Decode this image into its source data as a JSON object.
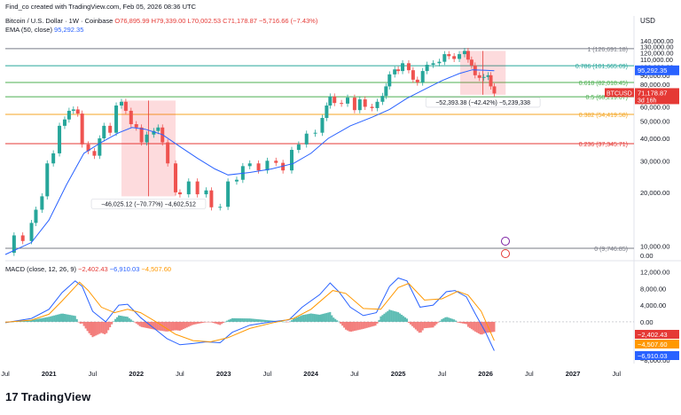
{
  "header": {
    "credit": "Find_co created with TradingView.com, Feb 05, 2026 08:36 UTC",
    "symbol_title": "Bitcoin / U.S. Dollar · 1W · Coinbase",
    "ohlc": "O76,895.99 H79,339.00 L70,002.53 C71,178.87 −5,716.66 (−7.43%)",
    "ema_label": "EMA (50, close)",
    "ema_value": "95,292.35",
    "macd_label": "MACD (close, 12, 26, 9)",
    "macd_values": [
      "−2,402.43",
      "−6,910.03",
      "−4,507.60"
    ],
    "currency": "USD"
  },
  "logo": {
    "text": "TradingView"
  },
  "chart_data": [
    {
      "type": "candlestick",
      "name": "price",
      "y_scale": "log",
      "ylim": [
        8500,
        150000
      ],
      "y_ticks": [
        10000,
        20000,
        30000,
        40000,
        50000,
        60000,
        70000,
        80000,
        90000,
        100000,
        110000,
        120000,
        130000,
        140000
      ],
      "y_tick_labels": [
        "10,000.00",
        "20,000.00",
        "30,000.00",
        "40,000.00",
        "50,000.00",
        "60,000.00",
        "70,000.00",
        "80,000.00",
        "90,000.00",
        "100,000.00",
        "110,000.00",
        "120,000.00",
        "130,000.00",
        "140,000.00"
      ],
      "y_bottom_label": "0.00",
      "x_ticks": [
        "Jul",
        "2021",
        "Jul",
        "2022",
        "Jul",
        "2023",
        "Jul",
        "2024",
        "Jul",
        "2025",
        "Jul",
        "2026",
        "Jul",
        "2027",
        "Jul"
      ],
      "x_tick_dates": [
        2020.5,
        2021.0,
        2021.5,
        2022.0,
        2022.5,
        2023.0,
        2023.5,
        2024.0,
        2024.5,
        2025.0,
        2025.5,
        2026.0,
        2026.5,
        2027.0,
        2027.5
      ],
      "xlim": [
        2020.5,
        2027.7
      ],
      "close_series": [
        [
          2020.5,
          9200
        ],
        [
          2020.6,
          11500
        ],
        [
          2020.7,
          10700
        ],
        [
          2020.8,
          13500
        ],
        [
          2020.85,
          16000
        ],
        [
          2020.92,
          19000
        ],
        [
          2020.98,
          29000
        ],
        [
          2021.05,
          33000
        ],
        [
          2021.12,
          47000
        ],
        [
          2021.18,
          51000
        ],
        [
          2021.23,
          57000
        ],
        [
          2021.28,
          58000
        ],
        [
          2021.33,
          55000
        ],
        [
          2021.38,
          37000
        ],
        [
          2021.45,
          34000
        ],
        [
          2021.52,
          32000
        ],
        [
          2021.58,
          40000
        ],
        [
          2021.63,
          47000
        ],
        [
          2021.7,
          43000
        ],
        [
          2021.77,
          61000
        ],
        [
          2021.83,
          64000
        ],
        [
          2021.88,
          57000
        ],
        [
          2021.94,
          48000
        ],
        [
          2022.0,
          46000
        ],
        [
          2022.06,
          38000
        ],
        [
          2022.12,
          42000
        ],
        [
          2022.2,
          44000
        ],
        [
          2022.25,
          46000
        ],
        [
          2022.3,
          38000
        ],
        [
          2022.36,
          29000
        ],
        [
          2022.45,
          20000
        ],
        [
          2022.5,
          19500
        ],
        [
          2022.6,
          23000
        ],
        [
          2022.7,
          19500
        ],
        [
          2022.8,
          20500
        ],
        [
          2022.86,
          16500
        ],
        [
          2022.96,
          16600
        ],
        [
          2023.05,
          23000
        ],
        [
          2023.15,
          23500
        ],
        [
          2023.22,
          28000
        ],
        [
          2023.3,
          29000
        ],
        [
          2023.4,
          26500
        ],
        [
          2023.5,
          30000
        ],
        [
          2023.6,
          29200
        ],
        [
          2023.68,
          26500
        ],
        [
          2023.78,
          34500
        ],
        [
          2023.86,
          37000
        ],
        [
          2023.95,
          42500
        ],
        [
          2024.05,
          43000
        ],
        [
          2024.13,
          52000
        ],
        [
          2024.18,
          61000
        ],
        [
          2024.22,
          68500
        ],
        [
          2024.27,
          63000
        ],
        [
          2024.35,
          62500
        ],
        [
          2024.42,
          67500
        ],
        [
          2024.5,
          57500
        ],
        [
          2024.56,
          66000
        ],
        [
          2024.62,
          60000
        ],
        [
          2024.7,
          59000
        ],
        [
          2024.76,
          64000
        ],
        [
          2024.82,
          69000
        ],
        [
          2024.86,
          78000
        ],
        [
          2024.9,
          91000
        ],
        [
          2024.96,
          97000
        ],
        [
          2025.0,
          95000
        ],
        [
          2025.05,
          105000
        ],
        [
          2025.12,
          96000
        ],
        [
          2025.17,
          85000
        ],
        [
          2025.22,
          82000
        ],
        [
          2025.28,
          95000
        ],
        [
          2025.33,
          103000
        ],
        [
          2025.4,
          105000
        ],
        [
          2025.47,
          107000
        ],
        [
          2025.53,
          118000
        ],
        [
          2025.58,
          115000
        ],
        [
          2025.64,
          111000
        ],
        [
          2025.7,
          118000
        ],
        [
          2025.76,
          123000
        ],
        [
          2025.8,
          110000
        ],
        [
          2025.84,
          102000
        ],
        [
          2025.88,
          90000
        ],
        [
          2025.93,
          87000
        ],
        [
          2025.98,
          88000
        ],
        [
          2026.03,
          90000
        ],
        [
          2026.06,
          78000
        ],
        [
          2026.1,
          71178.87
        ]
      ],
      "ema_series": [
        [
          2020.5,
          9000
        ],
        [
          2020.8,
          10500
        ],
        [
          2021.0,
          14000
        ],
        [
          2021.2,
          22000
        ],
        [
          2021.4,
          33000
        ],
        [
          2021.6,
          38000
        ],
        [
          2021.8,
          43000
        ],
        [
          2021.95,
          46000
        ],
        [
          2022.1,
          45000
        ],
        [
          2022.3,
          42000
        ],
        [
          2022.5,
          36000
        ],
        [
          2022.7,
          31000
        ],
        [
          2022.9,
          27000
        ],
        [
          2023.05,
          25000
        ],
        [
          2023.3,
          25800
        ],
        [
          2023.55,
          27000
        ],
        [
          2023.8,
          29000
        ],
        [
          2024.0,
          33000
        ],
        [
          2024.2,
          40000
        ],
        [
          2024.45,
          47000
        ],
        [
          2024.7,
          52500
        ],
        [
          2024.9,
          58000
        ],
        [
          2025.1,
          67000
        ],
        [
          2025.3,
          75000
        ],
        [
          2025.5,
          84000
        ],
        [
          2025.7,
          92000
        ],
        [
          2025.85,
          96500
        ],
        [
          2026.0,
          96000
        ],
        [
          2026.1,
          95292.35
        ]
      ],
      "fib_levels": [
        {
          "label": "1 (126,691.18)",
          "value": 126691.18,
          "color": "#787b86"
        },
        {
          "label": "0.786 (101,665.09)",
          "value": 101665.09,
          "color": "#26a69a"
        },
        {
          "label": "0.618 (82,018.45)",
          "value": 82018.45,
          "color": "#4caf50"
        },
        {
          "label": "0.5 (68,219.07)",
          "value": 68219.07,
          "color": "#4caf50"
        },
        {
          "label": "0.382 (54,419.58)",
          "value": 54419.58,
          "color": "#f5a623"
        },
        {
          "label": "0.236 (37,345.71)",
          "value": 37345.71,
          "color": "#e53935"
        },
        {
          "label": "0 (9,746.85)",
          "value": 9746.85,
          "color": "#787b86"
        }
      ],
      "measures": [
        {
          "label": "−46,025.12 (−70.77%) −4,602,512",
          "x_start": 2021.83,
          "x_end": 2022.45,
          "y_top": 65000,
          "y_bottom": 19000
        },
        {
          "label": "−52,393.38 (−42.42%) −5,239,338",
          "x_start": 2025.71,
          "x_end": 2026.23,
          "y_top": 123000,
          "y_bottom": 70000
        }
      ],
      "price_tags": [
        {
          "label": "BTCUSD",
          "value": "71,178.87",
          "sub": "3d 16h",
          "color": "#e53935"
        },
        {
          "label": "",
          "value": "95,292.35",
          "color": "#2962ff"
        }
      ]
    },
    {
      "type": "line",
      "name": "MACD",
      "ylim": [
        -10000,
        14000
      ],
      "y_ticks": [
        12000,
        8000,
        4000,
        0
      ],
      "y_tick_labels": [
        "12,000.00",
        "8,000.00",
        "4,000.00",
        "0.00"
      ],
      "y_bottom_label": "−8,000.00",
      "macd_series": [
        [
          2020.5,
          -200
        ],
        [
          2020.8,
          800
        ],
        [
          2021.0,
          3000
        ],
        [
          2021.15,
          7000
        ],
        [
          2021.3,
          9800
        ],
        [
          2021.38,
          8500
        ],
        [
          2021.5,
          2500
        ],
        [
          2021.65,
          0
        ],
        [
          2021.8,
          4000
        ],
        [
          2021.9,
          4200
        ],
        [
          2022.05,
          1000
        ],
        [
          2022.2,
          -1500
        ],
        [
          2022.35,
          -4000
        ],
        [
          2022.5,
          -5500
        ],
        [
          2022.65,
          -5200
        ],
        [
          2022.8,
          -4800
        ],
        [
          2022.96,
          -5000
        ],
        [
          2023.1,
          -2500
        ],
        [
          2023.3,
          -800
        ],
        [
          2023.55,
          0
        ],
        [
          2023.75,
          500
        ],
        [
          2023.9,
          3500
        ],
        [
          2024.1,
          6500
        ],
        [
          2024.22,
          9300
        ],
        [
          2024.32,
          7200
        ],
        [
          2024.45,
          3500
        ],
        [
          2024.6,
          1500
        ],
        [
          2024.75,
          2200
        ],
        [
          2024.9,
          8500
        ],
        [
          2025.0,
          10500
        ],
        [
          2025.1,
          9800
        ],
        [
          2025.25,
          3500
        ],
        [
          2025.4,
          4000
        ],
        [
          2025.55,
          7200
        ],
        [
          2025.65,
          7500
        ],
        [
          2025.78,
          6000
        ],
        [
          2025.88,
          2000
        ],
        [
          2026.0,
          -2500
        ],
        [
          2026.1,
          -6910.03
        ]
      ],
      "signal_series": [
        [
          2020.5,
          -100
        ],
        [
          2020.8,
          400
        ],
        [
          2021.0,
          1800
        ],
        [
          2021.15,
          5000
        ],
        [
          2021.35,
          9500
        ],
        [
          2021.45,
          7500
        ],
        [
          2021.6,
          3500
        ],
        [
          2021.75,
          2200
        ],
        [
          2021.9,
          3000
        ],
        [
          2022.05,
          2200
        ],
        [
          2022.25,
          -300
        ],
        [
          2022.45,
          -3000
        ],
        [
          2022.65,
          -4500
        ],
        [
          2022.85,
          -4800
        ],
        [
          2023.05,
          -3800
        ],
        [
          2023.3,
          -1600
        ],
        [
          2023.55,
          -300
        ],
        [
          2023.8,
          800
        ],
        [
          2024.0,
          3000
        ],
        [
          2024.25,
          7500
        ],
        [
          2024.4,
          6800
        ],
        [
          2024.6,
          3200
        ],
        [
          2024.8,
          3000
        ],
        [
          2025.0,
          8200
        ],
        [
          2025.12,
          9200
        ],
        [
          2025.3,
          5200
        ],
        [
          2025.5,
          5500
        ],
        [
          2025.68,
          7300
        ],
        [
          2025.8,
          6400
        ],
        [
          2025.95,
          2500
        ],
        [
          2026.1,
          -4507.6
        ]
      ],
      "histogram_last": -2402.43
    }
  ]
}
